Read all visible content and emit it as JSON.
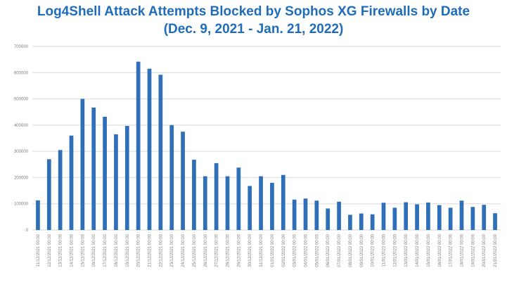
{
  "chart_data": {
    "type": "bar",
    "title": "Log4Shell Attack Attempts Blocked by Sophos XG Firewalls by Date",
    "subtitle": "(Dec. 9, 2021 - Jan. 21, 2022)",
    "xlabel": "",
    "ylabel": "",
    "ylim": [
      0,
      700000
    ],
    "y_ticks": [
      "0",
      "100000",
      "200000",
      "300000",
      "400000",
      "500000",
      "600000",
      "700000"
    ],
    "grid": true,
    "bar_color": "#2e6fb7",
    "categories": [
      "11/12/2021 00:00",
      "12/12/2021 00:00",
      "13/12/2021 00:00",
      "14/12/2021 00:00",
      "15/12/2021 00:00",
      "16/12/2021 00:00",
      "17/12/2021 00:00",
      "18/12/2021 00:00",
      "19/12/2021 00:00",
      "20/12/2021 00:00",
      "21/12/2021 00:00",
      "22/12/2021 00:00",
      "23/12/2021 00:00",
      "24/12/2021 00:00",
      "25/12/2021 00:00",
      "26/12/2021 00:00",
      "27/12/2021 00:00",
      "28/12/2021 00:00",
      "29/12/2021 00:00",
      "30/12/2021 00:00",
      "31/12/2021 00:00",
      "01/01/2022 00:00",
      "02/01/2022 00:00",
      "03/01/2022 00:00",
      "04/01/2022 00:00",
      "05/01/2022 00:00",
      "06/01/2022 00:00",
      "07/01/2022 00:00",
      "08/01/2022 00:00",
      "09/01/2022 00:00",
      "10/01/2022 00:00",
      "11/01/2022 00:00",
      "12/01/2022 00:00",
      "13/01/2022 00:00",
      "14/01/2022 00:00",
      "15/01/2022 00:00",
      "16/01/2022 00:00",
      "17/01/2022 00:00",
      "18/01/2022 00:00",
      "19/01/2022 00:00",
      "20/01/2022 00:00",
      "21/01/2022 00:00"
    ],
    "values": [
      113000,
      270000,
      305000,
      360000,
      500000,
      467000,
      432000,
      365000,
      397000,
      642000,
      615000,
      592000,
      400000,
      375000,
      268000,
      205000,
      255000,
      205000,
      238000,
      168000,
      205000,
      180000,
      210000,
      116000,
      120000,
      112000,
      82000,
      108000,
      58000,
      63000,
      60000,
      104000,
      85000,
      106000,
      98000,
      105000,
      95000,
      85000,
      112000,
      88000,
      96000,
      64000
    ]
  }
}
